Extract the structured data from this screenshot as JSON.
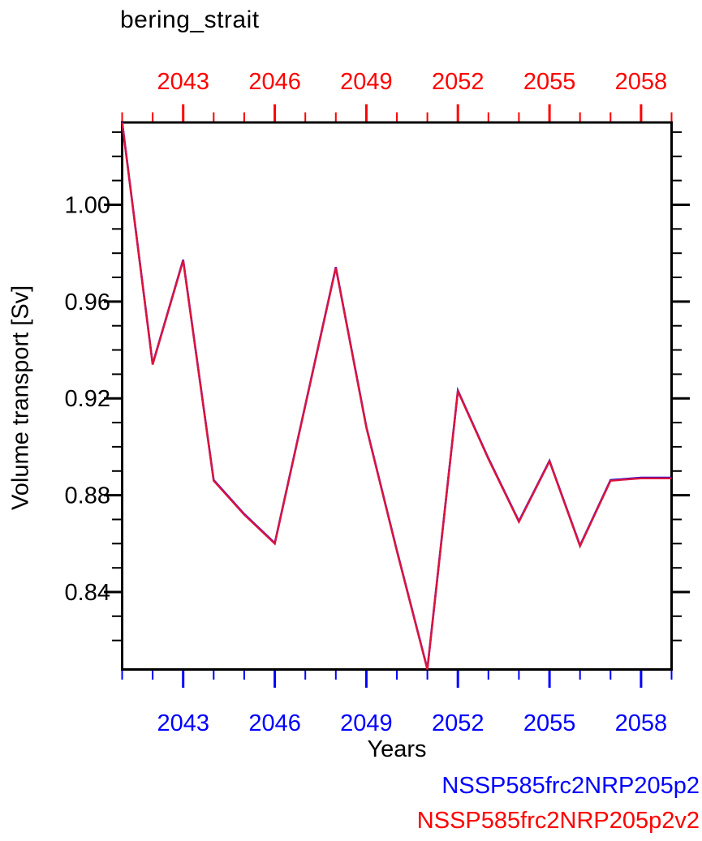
{
  "chart_data": {
    "type": "line",
    "title": "bering_strait",
    "xlabel": "Years",
    "ylabel": "Volume transport [Sv]",
    "x": [
      2041,
      2042,
      2043,
      2044,
      2045,
      2046,
      2047,
      2048,
      2049,
      2050,
      2051,
      2052,
      2053,
      2054,
      2055,
      2056,
      2057,
      2058,
      2059
    ],
    "series": [
      {
        "name": "NSSP585frc2NRP205p2",
        "color": "#0000ff",
        "values": [
          1.034,
          0.934,
          0.977,
          0.886,
          0.872,
          0.86,
          0.917,
          0.974,
          0.908,
          0.857,
          0.808,
          0.923,
          0.895,
          0.869,
          0.894,
          0.859,
          0.886,
          0.887,
          0.887
        ]
      },
      {
        "name": "NSSP585frc2NRP205p2v2",
        "color": "#dc143c",
        "values": [
          1.034,
          0.934,
          0.977,
          0.886,
          0.872,
          0.86,
          0.917,
          0.974,
          0.908,
          0.857,
          0.808,
          0.923,
          0.895,
          0.869,
          0.894,
          0.859,
          0.886,
          0.887,
          0.887
        ]
      }
    ],
    "xlim": [
      2041,
      2059
    ],
    "ylim": [
      0.808,
      1.034
    ],
    "x_major_ticks": [
      2043,
      2046,
      2049,
      2052,
      2055,
      2058
    ],
    "x_tick_labels": [
      "2043",
      "2046",
      "2049",
      "2052",
      "2055",
      "2058"
    ],
    "x_minor_step": 1,
    "y_major_ticks": [
      1.0,
      0.96,
      0.92,
      0.88,
      0.84
    ],
    "y_tick_labels": [
      "1.00",
      "0.96",
      "0.92",
      "0.88",
      "0.84"
    ],
    "y_minor_step": 0.01,
    "grid": false,
    "legend_position": "bottom-right",
    "colors": {
      "frame": "#000000",
      "top_axis": "#ff0000",
      "bottom_axis": "#0000ff",
      "left_axis": "#000000",
      "title_text": "#000000"
    }
  }
}
